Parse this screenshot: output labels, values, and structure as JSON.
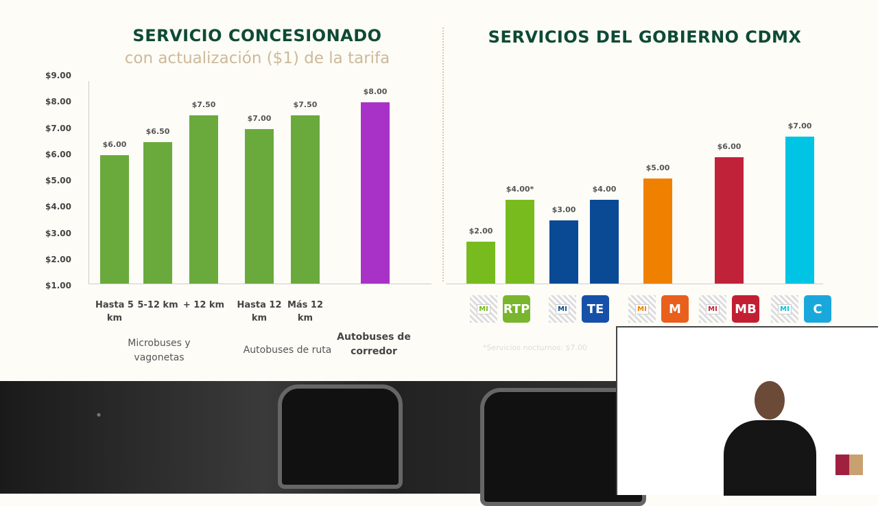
{
  "chart_data": [
    {
      "type": "bar",
      "title": "SERVICIO CONCESIONADO",
      "subtitle": "con actualización ($1) de la tarifa",
      "ylim": [
        1,
        9
      ],
      "yticks": [
        "$1.00",
        "$2.00",
        "$3.00",
        "$4.00",
        "$5.00",
        "$6.00",
        "$7.00",
        "$8.00",
        "$9.00"
      ],
      "categories": [
        "Hasta 5 km",
        "5-12 km",
        "+ 12 km",
        "Hasta 12 km",
        "Más 12 km",
        ""
      ],
      "values": [
        6.0,
        6.5,
        7.5,
        7.0,
        7.5,
        8.0
      ],
      "labels": [
        "$6.00",
        "$6.50",
        "$7.50",
        "$7.00",
        "$7.50",
        "$8.00"
      ],
      "colors": [
        "#6aaa3c",
        "#6aaa3c",
        "#6aaa3c",
        "#6aaa3c",
        "#6aaa3c",
        "#a832c8"
      ],
      "groups": [
        "Microbuses y vagonetas",
        "Autobuses de ruta",
        "Autobuses de corredor"
      ]
    },
    {
      "type": "bar",
      "title": "SERVICIOS DEL GOBIERNO CDMX",
      "ylim": [
        0,
        7
      ],
      "values": [
        2,
        4,
        3,
        4,
        5,
        6,
        7
      ],
      "labels": [
        "$2.00",
        "$4.00*",
        "$3.00",
        "$4.00",
        "$5.00",
        "$6.00",
        "$7.00"
      ],
      "colors": [
        "#78bb1e",
        "#78bb1e",
        "#0a4a94",
        "#0a4a94",
        "#f08000",
        "#c0223a",
        "#00c4e4"
      ],
      "icons": [
        [
          "mi-card-icon",
          "RTP",
          "rtp-logo-icon",
          "#79b52d"
        ],
        [
          "mi-card-icon",
          "TE",
          "trolebus-logo-icon",
          "#1650a8"
        ],
        [
          "mi-card-icon",
          "M",
          "metro-logo-icon",
          "#e8601c"
        ],
        [
          "mi-card-icon",
          "MB",
          "metrobus-logo-icon",
          "#c31f33"
        ],
        [
          "mi-card-icon",
          "C",
          "cablebus-logo-icon",
          "#1aa8dc"
        ]
      ],
      "mi_label": "MI",
      "footnote": "*Servicios nocturnos: $7.00"
    }
  ]
}
